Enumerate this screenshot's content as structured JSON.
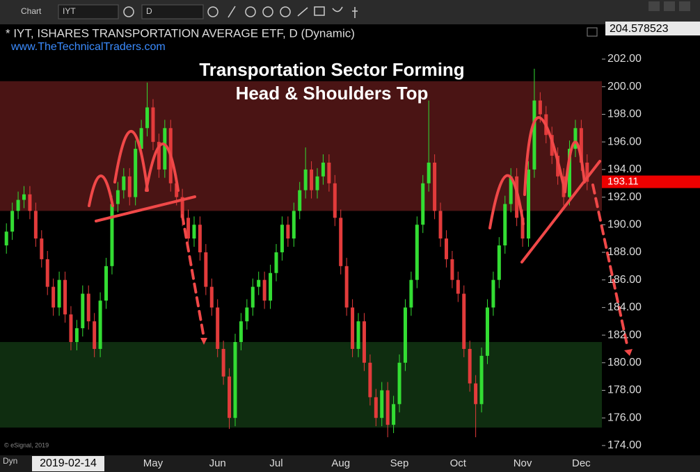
{
  "toolbar": {
    "chart": "Chart",
    "symbol": "IYT",
    "interval": "D"
  },
  "footer": {
    "mode": "Dyn",
    "date": "2019-02-14",
    "copyright": "© eSignal, 2019"
  },
  "chart_data": {
    "type": "candlestick",
    "title": "* IYT, ISHARES TRANSPORTATION AVERAGE ETF, D (Dynamic)",
    "subtitle": "www.TheTechnicalTraders.com",
    "annotation": [
      "Transportation Sector Forming",
      "Head & Shoulders Top"
    ],
    "cursor_price": "204.578523",
    "up_color": "#33dd33",
    "down_color": "#e23b3b",
    "zones": [
      {
        "from": 191,
        "to": 200.4,
        "color": "#4a1414"
      },
      {
        "from": 175.3,
        "to": 181.5,
        "color": "#0f2d10"
      }
    ],
    "ylim": [
      173.29,
      204.52
    ],
    "yticks": [
      {
        "value": 174,
        "label": "174.00"
      },
      {
        "value": 176,
        "label": "176.00"
      },
      {
        "value": 178,
        "label": "178.00"
      },
      {
        "value": 180,
        "label": "180.00"
      },
      {
        "value": 182,
        "label": "182.00"
      },
      {
        "value": 184,
        "label": "184.00"
      },
      {
        "value": 186,
        "label": "186.00"
      },
      {
        "value": 188,
        "label": "188.00"
      },
      {
        "value": 190,
        "label": "190.00"
      },
      {
        "value": 192,
        "label": "192.00"
      },
      {
        "value": 194,
        "label": "194.00"
      },
      {
        "value": 196,
        "label": "196.00"
      },
      {
        "value": 198,
        "label": "198.00"
      },
      {
        "value": 200,
        "label": "200.00"
      },
      {
        "value": 202,
        "label": "202.00"
      }
    ],
    "categories": [
      null,
      null,
      null,
      null,
      null,
      null,
      null,
      null,
      null,
      null,
      null,
      null,
      null,
      null,
      null,
      null,
      null,
      null,
      null,
      null,
      null,
      null,
      null,
      null,
      null,
      "May",
      null,
      null,
      null,
      null,
      null,
      null,
      null,
      null,
      null,
      null,
      "Jun",
      null,
      null,
      null,
      null,
      null,
      null,
      null,
      null,
      null,
      "Jul",
      null,
      null,
      null,
      null,
      null,
      null,
      null,
      null,
      null,
      null,
      "Aug",
      null,
      null,
      null,
      null,
      null,
      null,
      null,
      null,
      null,
      "Sep",
      null,
      null,
      null,
      null,
      null,
      null,
      null,
      null,
      null,
      "Oct",
      null,
      null,
      null,
      null,
      null,
      null,
      null,
      null,
      null,
      null,
      "Nov",
      null,
      null,
      null,
      null,
      null,
      null,
      null,
      null,
      null,
      "Dec",
      null
    ],
    "open": [
      188.5,
      189.5,
      191.0,
      191.8,
      192.2,
      191.0,
      189.0,
      187.5,
      185.5,
      184.0,
      186.0,
      183.5,
      181.5,
      182.5,
      185.0,
      183.0,
      181.0,
      184.5,
      187.0,
      191.5,
      192.5,
      193.5,
      192.0,
      195.5,
      197.0,
      198.5,
      196.0,
      194.0,
      197.0,
      193.0,
      192.0,
      190.5,
      189.0,
      190.0,
      188.0,
      185.5,
      184.0,
      181.0,
      179.0,
      176.0,
      181.5,
      183.0,
      184.0,
      185.5,
      186.0,
      184.5,
      186.5,
      188.0,
      190.0,
      189.0,
      191.0,
      192.5,
      194.0,
      192.5,
      193.5,
      194.5,
      193.0,
      190.5,
      187.0,
      184.0,
      181.0,
      183.0,
      180.0,
      177.5,
      176.0,
      178.0,
      175.5,
      177.0,
      180.0,
      184.0,
      186.0,
      190.0,
      193.0,
      194.5,
      191.0,
      189.0,
      187.5,
      186.0,
      185.0,
      181.0,
      178.5,
      177.0,
      180.5,
      184.0,
      186.0,
      188.5,
      191.5,
      193.5,
      190.5,
      189.0,
      194.0,
      199.0,
      198.0,
      196.5,
      195.0,
      193.5,
      192.0,
      195.5,
      197.0,
      194.5
    ],
    "high": [
      190.1,
      191.6,
      192.4,
      192.8,
      192.8,
      191.6,
      189.6,
      188.1,
      186.1,
      186.6,
      186.6,
      184.1,
      183.1,
      185.6,
      185.6,
      183.6,
      185.1,
      187.6,
      192.1,
      193.1,
      194.1,
      194.1,
      196.1,
      197.6,
      200.3,
      199.1,
      196.6,
      197.6,
      197.6,
      193.6,
      192.6,
      191.1,
      190.6,
      190.6,
      188.6,
      186.1,
      184.6,
      181.6,
      179.6,
      182.1,
      183.6,
      184.6,
      186.1,
      186.6,
      186.6,
      187.1,
      188.6,
      190.6,
      190.6,
      191.6,
      193.1,
      195.6,
      194.6,
      194.1,
      195.1,
      195.1,
      193.6,
      191.1,
      187.6,
      184.6,
      183.6,
      183.6,
      180.6,
      178.1,
      178.6,
      178.6,
      177.6,
      180.6,
      184.6,
      186.6,
      190.6,
      193.6,
      199.0,
      195.1,
      191.6,
      189.6,
      188.1,
      186.6,
      185.6,
      181.6,
      179.1,
      181.1,
      184.6,
      186.6,
      189.1,
      192.1,
      194.1,
      194.1,
      191.1,
      194.6,
      201.3,
      199.6,
      198.6,
      197.1,
      195.6,
      194.1,
      196.1,
      197.6,
      197.6,
      195.1
    ],
    "low": [
      187.9,
      188.9,
      190.4,
      191.2,
      190.4,
      188.4,
      186.9,
      184.9,
      183.4,
      183.4,
      182.9,
      180.9,
      180.9,
      181.9,
      182.4,
      180.4,
      180.4,
      183.9,
      186.4,
      190.9,
      191.9,
      191.4,
      191.4,
      194.9,
      196.4,
      195.4,
      193.4,
      193.4,
      192.4,
      191.4,
      189.9,
      188.4,
      188.4,
      187.4,
      184.9,
      183.4,
      180.4,
      178.4,
      175.2,
      175.4,
      180.9,
      182.4,
      183.4,
      184.9,
      183.9,
      183.9,
      185.9,
      187.4,
      188.4,
      188.4,
      190.4,
      191.9,
      191.9,
      191.9,
      192.9,
      192.4,
      189.9,
      186.4,
      183.4,
      180.4,
      180.4,
      179.4,
      176.9,
      175.4,
      175.4,
      174.6,
      174.9,
      176.4,
      179.4,
      183.4,
      185.4,
      189.4,
      192.4,
      190.4,
      188.4,
      186.9,
      185.4,
      184.4,
      180.4,
      177.9,
      174.6,
      176.4,
      179.9,
      183.4,
      185.4,
      187.9,
      190.9,
      189.9,
      188.4,
      188.4,
      193.4,
      197.4,
      195.9,
      194.4,
      192.9,
      191.4,
      191.4,
      194.9,
      193.9,
      192.5
    ],
    "close": [
      189.5,
      191.0,
      191.8,
      192.2,
      191.0,
      189.0,
      187.5,
      185.5,
      184.0,
      186.0,
      183.5,
      181.5,
      182.5,
      185.0,
      183.0,
      181.0,
      184.5,
      187.0,
      191.5,
      192.5,
      193.5,
      192.0,
      195.5,
      197.0,
      198.5,
      196.0,
      194.0,
      197.0,
      193.0,
      192.0,
      190.5,
      189.0,
      190.0,
      188.0,
      185.5,
      184.0,
      181.0,
      179.0,
      176.0,
      181.5,
      183.0,
      184.0,
      185.5,
      186.0,
      184.5,
      186.5,
      188.0,
      190.0,
      189.0,
      191.0,
      192.5,
      194.0,
      192.5,
      193.5,
      194.5,
      193.0,
      190.5,
      187.0,
      184.0,
      181.0,
      183.0,
      180.0,
      177.5,
      176.0,
      178.0,
      175.5,
      177.0,
      180.0,
      184.0,
      186.0,
      190.0,
      193.0,
      194.5,
      191.0,
      189.0,
      187.5,
      186.0,
      185.0,
      181.0,
      178.5,
      177.0,
      180.5,
      184.0,
      186.0,
      188.5,
      191.5,
      193.5,
      190.5,
      189.0,
      194.0,
      199.0,
      198.0,
      196.5,
      195.0,
      193.5,
      192.0,
      195.5,
      197.0,
      194.5,
      193.11
    ]
  }
}
